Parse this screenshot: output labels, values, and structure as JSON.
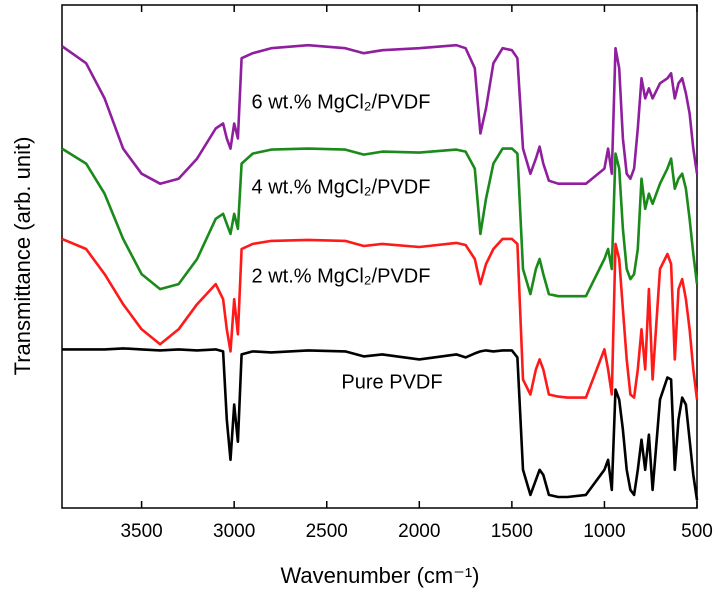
{
  "chart_data": {
    "type": "line",
    "xlabel": "Wavenumber (cm⁻¹)",
    "ylabel": "Transmittance (arb. unit)",
    "x": [
      3930,
      3800,
      3700,
      3600,
      3500,
      3400,
      3300,
      3200,
      3100,
      3060,
      3040,
      3020,
      3000,
      2980,
      2960,
      2900,
      2800,
      2600,
      2400,
      2300,
      2200,
      2000,
      1800,
      1750,
      1700,
      1670,
      1640,
      1600,
      1550,
      1500,
      1470,
      1440,
      1400,
      1370,
      1350,
      1330,
      1300,
      1250,
      1200,
      1100,
      1000,
      980,
      960,
      940,
      920,
      900,
      880,
      860,
      840,
      820,
      800,
      780,
      760,
      740,
      700,
      660,
      640,
      620,
      600,
      580,
      560,
      540,
      520,
      500
    ],
    "series": [
      {
        "name": "Pure PVDF",
        "color": "#000000",
        "values": [
          31.6,
          31.6,
          31.6,
          31.8,
          31.6,
          31.4,
          31.6,
          31.4,
          31.6,
          31.2,
          17.6,
          9.6,
          20.6,
          13.2,
          30.6,
          31.2,
          31,
          31.4,
          31.2,
          30.2,
          30.6,
          29.6,
          30.6,
          30,
          30.8,
          31.2,
          31.4,
          31.2,
          31.4,
          31.4,
          30,
          7.6,
          2.6,
          5.6,
          7.6,
          6.6,
          2.6,
          2.2,
          2.2,
          2.6,
          7.6,
          9.6,
          3.6,
          23.6,
          21.6,
          15.6,
          7.6,
          3.6,
          2.6,
          7.6,
          13.6,
          7.6,
          14.6,
          3.6,
          21.6,
          26,
          25.6,
          7.6,
          17.6,
          22,
          20.6,
          13.6,
          6.6,
          1.6
        ]
      },
      {
        "name": "2 wt.% MgCl₂/PVDF",
        "color": "#ff1a1a",
        "values": [
          53.6,
          51.6,
          46.6,
          40.6,
          35.6,
          32.6,
          35.6,
          40.6,
          44.6,
          41.6,
          35.6,
          31.2,
          41.6,
          34.6,
          51.6,
          52.6,
          53.2,
          53.4,
          53.2,
          52.2,
          52.6,
          52,
          52.8,
          52.4,
          49.6,
          44.6,
          48.6,
          51.6,
          53.6,
          53.6,
          52.6,
          25.6,
          22.6,
          27.6,
          29.6,
          27.6,
          22.6,
          22.2,
          22,
          22,
          31.6,
          27.6,
          22.6,
          52.6,
          49.6,
          39.6,
          29.6,
          22.6,
          22,
          27.6,
          35.6,
          27.6,
          43.6,
          25.6,
          47.6,
          50.6,
          48.6,
          29.6,
          43.6,
          45.6,
          41.6,
          35.6,
          27.6,
          21.6
        ]
      },
      {
        "name": "4 wt.% MgCl₂/PVDF",
        "color": "#1a8a1a",
        "values": [
          71.6,
          68.6,
          62.6,
          53.6,
          46.6,
          43.6,
          44.6,
          49.6,
          57.6,
          58.6,
          56.6,
          54.6,
          58.6,
          55.6,
          68.6,
          70.6,
          71.4,
          71.6,
          71.4,
          70.4,
          71,
          70.8,
          71.4,
          71,
          67.6,
          54.6,
          61.6,
          68.6,
          71.6,
          71.6,
          70.6,
          47.6,
          42.6,
          47.6,
          49.6,
          46.6,
          42.6,
          42.2,
          42.2,
          42.2,
          49.6,
          51.6,
          47.6,
          70.6,
          67.6,
          55.6,
          47.6,
          45.6,
          46.6,
          51.6,
          65.6,
          59.6,
          62.6,
          60.6,
          64.6,
          67.6,
          69.6,
          63.6,
          65.6,
          66.6,
          63.6,
          57.6,
          50.6,
          44.6
        ]
      },
      {
        "name": "6 wt.% MgCl₂/PVDF",
        "color": "#8f1f9e",
        "values": [
          92,
          88.6,
          81.6,
          71.6,
          66.6,
          64.6,
          65.6,
          69.6,
          75.6,
          76.6,
          73.6,
          71.6,
          76.6,
          73.6,
          89.6,
          90.6,
          91.6,
          92.2,
          91.6,
          90.6,
          91.2,
          91.6,
          92.2,
          91.6,
          87.6,
          74.6,
          79.6,
          88.6,
          91.6,
          91.2,
          89.6,
          71.6,
          66.6,
          69.6,
          72,
          68.6,
          65.2,
          64.6,
          64.6,
          64.6,
          67.6,
          71.6,
          66.6,
          91.6,
          87.6,
          73.6,
          66.6,
          65.6,
          67.6,
          75.6,
          85.6,
          81.6,
          83.6,
          81.6,
          84.6,
          85.6,
          86.6,
          81.6,
          84.6,
          85.6,
          82.6,
          78.6,
          71.6,
          66.6
        ]
      }
    ],
    "xlim": [
      3930,
      500
    ],
    "xticks": [
      3500,
      3000,
      2500,
      2000,
      1500,
      1000,
      500
    ],
    "ylim": [
      0,
      100
    ]
  }
}
